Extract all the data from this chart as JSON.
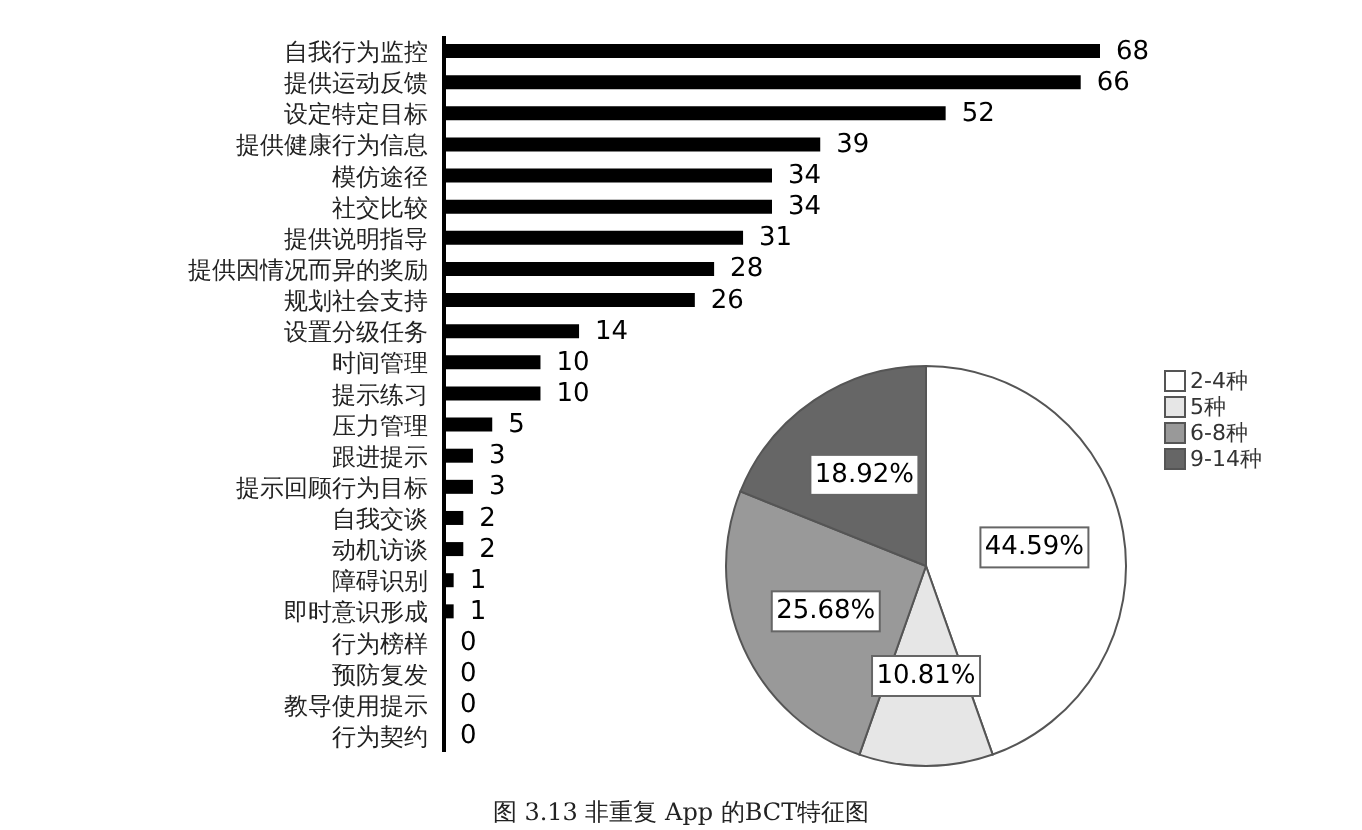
{
  "chart_data": [
    {
      "type": "bar",
      "orientation": "horizontal",
      "data_labels": true,
      "color": "#000000",
      "categories": [
        "自我行为监控",
        "提供运动反馈",
        "设定特定目标",
        "提供健康行为信息",
        "模仿途径",
        "社交比较",
        "提供说明指导",
        "提供因情况而异的奖励",
        "规划社会支持",
        "设置分级任务",
        "时间管理",
        "提示练习",
        "压力管理",
        "跟进提示",
        "提示回顾行为目标",
        "自我交谈",
        "动机访谈",
        "障碍识别",
        "即时意识形成",
        "行为榜样",
        "预防复发",
        "教导使用提示",
        "行为契约"
      ],
      "values": [
        68,
        66,
        52,
        39,
        34,
        34,
        31,
        28,
        26,
        14,
        10,
        10,
        5,
        3,
        3,
        2,
        2,
        1,
        1,
        0,
        0,
        0,
        0
      ],
      "annotations": [
        "图 3.13 非重复 App 的BCT特征图"
      ]
    },
    {
      "type": "pie",
      "legend": "top right",
      "categories": [
        "2-4种",
        "5种",
        "6-8种",
        "9-14种"
      ],
      "values": [
        44.59,
        10.81,
        25.68,
        18.92
      ],
      "value_labels": [
        "44.59%",
        "10.81%",
        "25.68%",
        "18.92%"
      ],
      "colors": [
        "#ffffff",
        "#e6e6e6",
        "#999999",
        "#666666"
      ]
    }
  ]
}
